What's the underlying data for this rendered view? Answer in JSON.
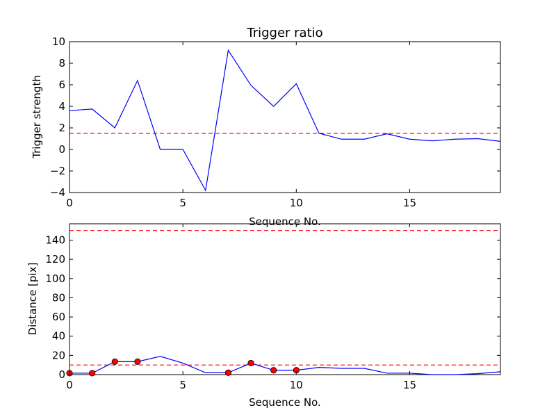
{
  "chart_data": [
    {
      "type": "line",
      "title": "Trigger ratio",
      "xlabel": "Sequence No.",
      "ylabel": "Trigger strength",
      "xlim": [
        0,
        19
      ],
      "ylim": [
        -4,
        10
      ],
      "xticks": [
        0,
        5,
        10,
        15
      ],
      "yticks": [
        -4,
        -2,
        0,
        2,
        4,
        6,
        8,
        10
      ],
      "series": [
        {
          "x": [
            0,
            1,
            2,
            3,
            4,
            5,
            6,
            7,
            8,
            9,
            10,
            11,
            12,
            13,
            14,
            15,
            16,
            17,
            18,
            19
          ],
          "y": [
            3.6,
            3.75,
            2.0,
            6.4,
            0.0,
            0.0,
            -3.8,
            9.2,
            5.95,
            4.0,
            6.1,
            1.5,
            0.95,
            0.95,
            1.45,
            0.95,
            0.8,
            0.95,
            1.0,
            0.75
          ],
          "color": "#0000ff",
          "style": "solid"
        }
      ],
      "hlines": [
        {
          "y": 1.5,
          "color": "#ff0000",
          "style": "dashed"
        }
      ]
    },
    {
      "type": "line",
      "title": "",
      "xlabel": "Sequence No.",
      "ylabel": "Distance [pix]",
      "xlim": [
        0,
        19
      ],
      "ylim": [
        0,
        157
      ],
      "xticks": [
        0,
        5,
        10,
        15
      ],
      "yticks": [
        0,
        20,
        40,
        60,
        80,
        100,
        120,
        140
      ],
      "series": [
        {
          "x": [
            0,
            1,
            2,
            3,
            4,
            5,
            6,
            7,
            8,
            9,
            10,
            11,
            12,
            13,
            14,
            15,
            16,
            17,
            18,
            19
          ],
          "y": [
            1.5,
            1.5,
            13.5,
            13.5,
            19,
            12,
            2,
            2,
            12,
            4.5,
            4.5,
            7.5,
            6.5,
            6.5,
            1.5,
            1.5,
            0,
            0,
            1,
            3
          ],
          "color": "#0000ff",
          "style": "solid"
        }
      ],
      "markers": {
        "x": [
          0,
          1,
          2,
          3,
          7,
          8,
          9,
          10
        ],
        "y": [
          1.5,
          1.5,
          13.5,
          13.5,
          2,
          12,
          4.5,
          4.5
        ],
        "color": "#ff0000"
      },
      "hlines": [
        {
          "y": 150,
          "color": "#ff0000",
          "style": "dashed"
        },
        {
          "y": 10,
          "color": "#ff0000",
          "style": "dashed"
        }
      ]
    }
  ]
}
